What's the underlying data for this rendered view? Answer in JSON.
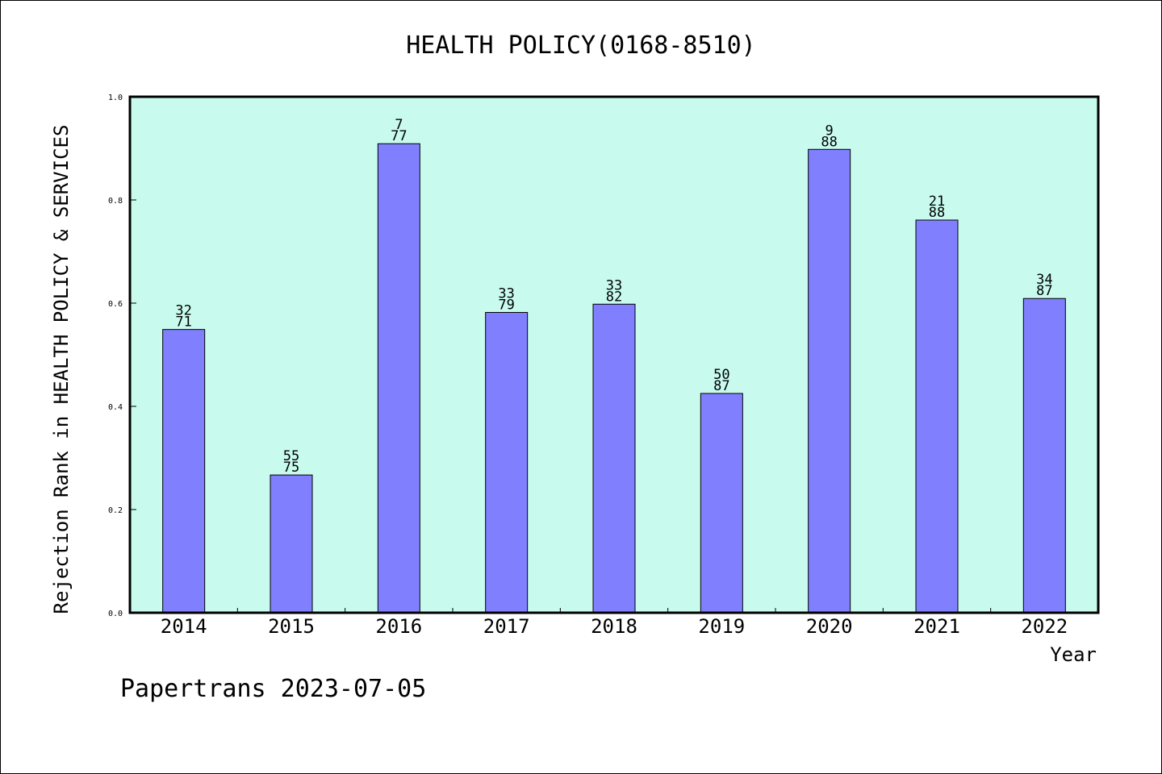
{
  "chart_data": {
    "type": "bar",
    "title": "HEALTH POLICY(0168-8510)",
    "xlabel": "Year",
    "ylabel": "Rejection Rank in HEALTH POLICY & SERVICES",
    "categories": [
      "2014",
      "2015",
      "2016",
      "2017",
      "2018",
      "2019",
      "2020",
      "2021",
      "2022"
    ],
    "values": [
      0.549,
      0.267,
      0.909,
      0.582,
      0.598,
      0.425,
      0.898,
      0.761,
      0.609
    ],
    "rank": [
      "32",
      "55",
      "7",
      "33",
      "33",
      "50",
      "9",
      "21",
      "34"
    ],
    "total": [
      "71",
      "75",
      "77",
      "79",
      "82",
      "87",
      "88",
      "88",
      "87"
    ],
    "ylim": [
      0,
      1.0
    ],
    "yticks": [
      "0.0",
      "0.2",
      "0.4",
      "0.6",
      "0.8",
      "1.0"
    ],
    "grid": false,
    "colors": {
      "plot_background": "#c8fbee",
      "bar_fill": "#8080ff",
      "bar_stroke": "#000000"
    }
  },
  "footer": "Papertrans 2023-07-05"
}
